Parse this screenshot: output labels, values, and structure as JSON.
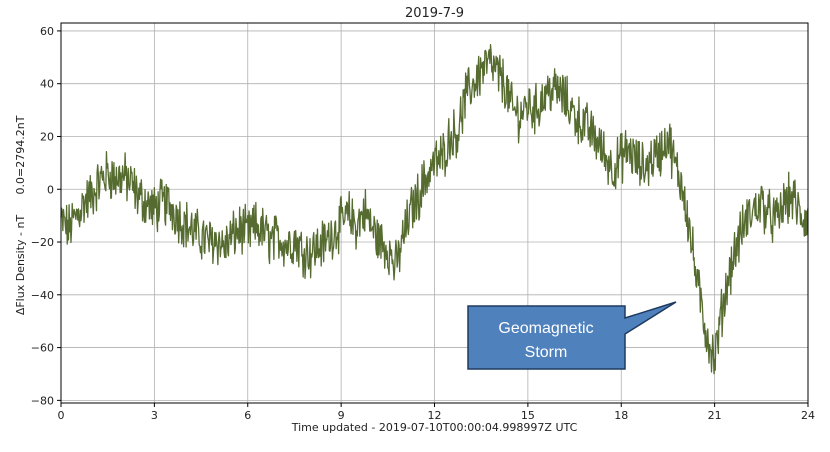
{
  "chart_data": {
    "type": "line",
    "title": "2019-7-9",
    "xlabel": "Time  updated - 2019-07-10T00:00:04.998997Z UTC",
    "ylabel": "ΔFlux Density - nT",
    "ylabel2": "0.0=2794.2nT",
    "xlim": [
      0,
      24
    ],
    "ylim": [
      -81,
      63
    ],
    "x_ticks": [
      0,
      3,
      6,
      9,
      12,
      15,
      18,
      21,
      24
    ],
    "y_ticks": [
      -80,
      -60,
      -40,
      -20,
      0,
      20,
      40,
      60
    ],
    "y_tick_labels": [
      "−80",
      "−60",
      "−40",
      "−20",
      "0",
      "20",
      "40",
      "60"
    ],
    "grid": true,
    "series": [
      {
        "color": "#556b2f",
        "x": [
          0,
          0.25,
          0.5,
          0.75,
          1.0,
          1.25,
          1.5,
          1.75,
          2.0,
          2.25,
          2.5,
          2.75,
          3.0,
          3.25,
          3.5,
          3.75,
          4.0,
          4.25,
          4.5,
          4.75,
          5.0,
          5.25,
          5.5,
          5.75,
          6.0,
          6.25,
          6.5,
          6.75,
          7.0,
          7.25,
          7.5,
          7.75,
          8.0,
          8.25,
          8.5,
          8.75,
          9.0,
          9.25,
          9.5,
          9.75,
          10.0,
          10.25,
          10.5,
          10.75,
          11.0,
          11.25,
          11.5,
          11.75,
          12.0,
          12.25,
          12.5,
          12.75,
          13.0,
          13.25,
          13.5,
          13.75,
          14.0,
          14.25,
          14.5,
          14.75,
          15.0,
          15.25,
          15.5,
          15.75,
          16.0,
          16.25,
          16.5,
          16.75,
          17.0,
          17.25,
          17.5,
          17.75,
          18.0,
          18.25,
          18.5,
          18.75,
          19.0,
          19.25,
          19.5,
          19.75,
          20.0,
          20.25,
          20.5,
          20.75,
          21.0,
          21.25,
          21.5,
          21.75,
          22.0,
          22.25,
          22.5,
          22.75,
          23.0,
          23.25,
          23.5,
          23.75,
          24.0
        ],
        "y": [
          -12,
          -15,
          -10,
          -5,
          -2,
          3,
          6,
          4,
          5,
          2,
          -3,
          -5,
          -8,
          -5,
          -6,
          -10,
          -13,
          -16,
          -18,
          -20,
          -19,
          -22,
          -18,
          -15,
          -17,
          -14,
          -16,
          -20,
          -18,
          -21,
          -19,
          -23,
          -24,
          -22,
          -20,
          -16,
          -13,
          -10,
          -14,
          -8,
          -15,
          -20,
          -22,
          -30,
          -18,
          -8,
          -2,
          5,
          10,
          12,
          20,
          22,
          35,
          40,
          45,
          48,
          44,
          40,
          30,
          28,
          32,
          30,
          35,
          38,
          37,
          33,
          28,
          25,
          22,
          18,
          12,
          8,
          12,
          15,
          10,
          8,
          12,
          14,
          20,
          8,
          0,
          -20,
          -40,
          -55,
          -65,
          -45,
          -30,
          -20,
          -12,
          -8,
          -5,
          -10,
          -12,
          -5,
          -3,
          -10,
          -12
        ]
      }
    ],
    "annotations": [
      {
        "text": [
          "Geomagnetic",
          "Storm"
        ],
        "box_color": "#4f81bd",
        "border_color": "#1f3a60",
        "points_to": {
          "x": 20.2,
          "y": -43
        }
      }
    ]
  }
}
